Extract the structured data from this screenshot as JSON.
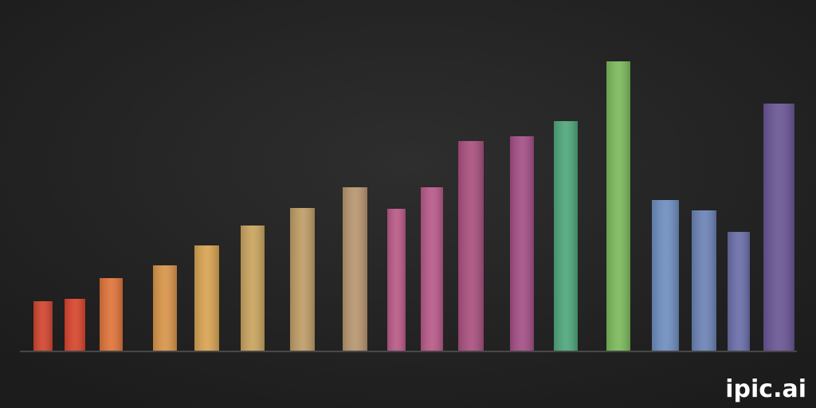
{
  "chart_data": {
    "type": "bar",
    "categories": [
      null,
      null,
      null,
      null,
      null,
      null,
      null,
      null,
      null,
      null,
      null,
      null,
      null,
      null,
      null,
      null,
      null,
      null
    ],
    "values": [
      62,
      65,
      91,
      107,
      132,
      157,
      179,
      205,
      178,
      205,
      263,
      269,
      288,
      363,
      189,
      176,
      149,
      310
    ],
    "colors": [
      "#d2452f",
      "#d8452c",
      "#e0743a",
      "#d9944a",
      "#d8a452",
      "#c9a45e",
      "#bf9d66",
      "#b89670",
      "#b95a86",
      "#b85a8a",
      "#a9507e",
      "#a34f86",
      "#4fa77c",
      "#7cba5c",
      "#6e8ec0",
      "#6c83b6",
      "#6a6ea8",
      "#6a5696"
    ],
    "ylim": [
      0,
      400
    ]
  },
  "watermark": "ipic.ai"
}
